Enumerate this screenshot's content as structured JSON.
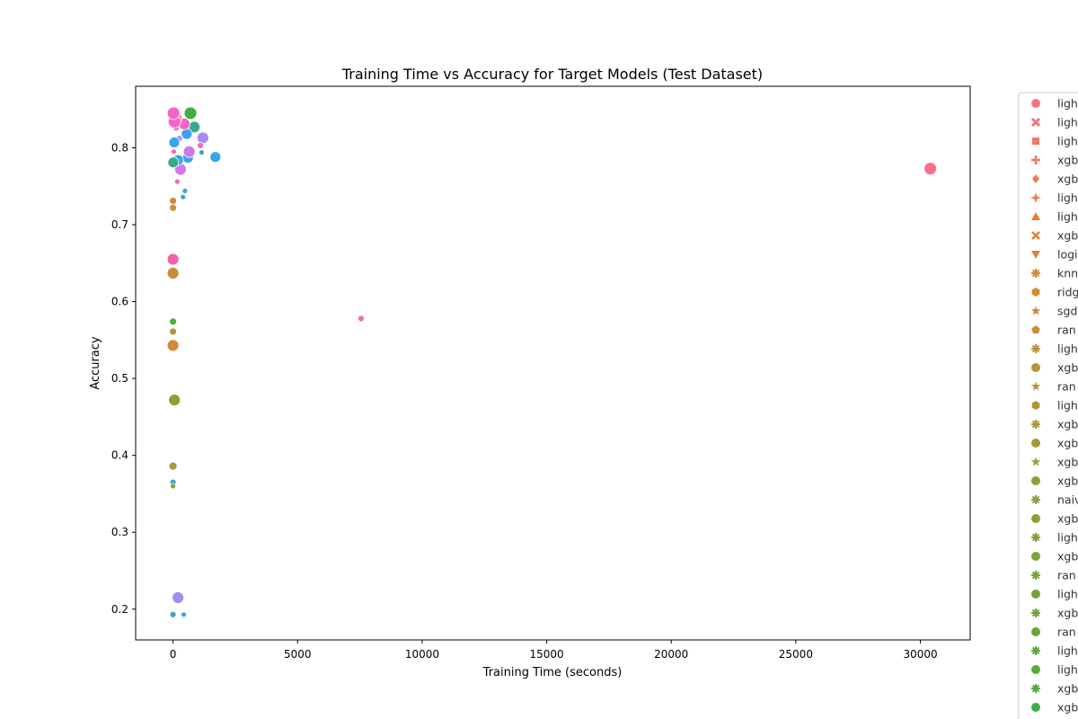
{
  "chart_data": {
    "type": "scatter",
    "title": "Training Time vs Accuracy for Target Models (Test Dataset)",
    "xlabel": "Training Time (seconds)",
    "ylabel": "Accuracy",
    "xlim": [
      -1500,
      32000
    ],
    "ylim": [
      0.16,
      0.88
    ],
    "xticks": [
      0,
      5000,
      10000,
      15000,
      20000,
      25000,
      30000
    ],
    "yticks": [
      0.2,
      0.3,
      0.4,
      0.5,
      0.6,
      0.7,
      0.8
    ],
    "legend_placement": "outside right",
    "legend": [
      {
        "label": "ligh",
        "marker": "circle",
        "color": "#f77189"
      },
      {
        "label": "ligh",
        "marker": "x",
        "color": "#f7717e"
      },
      {
        "label": "ligh",
        "marker": "square",
        "color": "#f7736f"
      },
      {
        "label": "xgb",
        "marker": "plus",
        "color": "#f7755f"
      },
      {
        "label": "xgb",
        "marker": "diamond",
        "color": "#f47850"
      },
      {
        "label": "ligh",
        "marker": "star4",
        "color": "#f17b40"
      },
      {
        "label": "ligh",
        "marker": "triangle-up",
        "color": "#ec7e30"
      },
      {
        "label": "xgb",
        "marker": "x-thick",
        "color": "#e68128"
      },
      {
        "label": "logi",
        "marker": "triangle-down",
        "color": "#e08430"
      },
      {
        "label": "knn",
        "marker": "asterisk",
        "color": "#da8732"
      },
      {
        "label": "ridg",
        "marker": "hexagon",
        "color": "#d48934"
      },
      {
        "label": "sgd",
        "marker": "star",
        "color": "#ce8c36"
      },
      {
        "label": "ran",
        "marker": "pentagon",
        "color": "#c88e36"
      },
      {
        "label": "ligh",
        "marker": "asterisk",
        "color": "#c29036"
      },
      {
        "label": "xgb",
        "marker": "octagon",
        "color": "#bb9237"
      },
      {
        "label": "ran",
        "marker": "star",
        "color": "#b59437"
      },
      {
        "label": "ligh",
        "marker": "hexagon",
        "color": "#ae9637"
      },
      {
        "label": "xgb",
        "marker": "asterisk",
        "color": "#a89837"
      },
      {
        "label": "xgb",
        "marker": "octagon",
        "color": "#a29a37"
      },
      {
        "label": "xgb",
        "marker": "star",
        "color": "#9c9b37"
      },
      {
        "label": "xgb",
        "marker": "octagon",
        "color": "#969c36"
      },
      {
        "label": "naiv",
        "marker": "asterisk",
        "color": "#909e36"
      },
      {
        "label": "xgb",
        "marker": "octagon",
        "color": "#8b9f36"
      },
      {
        "label": "ligh",
        "marker": "asterisk",
        "color": "#85a036"
      },
      {
        "label": "xgb",
        "marker": "octagon",
        "color": "#7fa236"
      },
      {
        "label": "ran",
        "marker": "asterisk",
        "color": "#79a336"
      },
      {
        "label": "ligh",
        "marker": "octagon",
        "color": "#73a436"
      },
      {
        "label": "xgb",
        "marker": "asterisk",
        "color": "#6da636"
      },
      {
        "label": "ran",
        "marker": "octagon",
        "color": "#66a836"
      },
      {
        "label": "ligh",
        "marker": "asterisk",
        "color": "#5ea936"
      },
      {
        "label": "ligh",
        "marker": "octagon",
        "color": "#55ab36"
      },
      {
        "label": "xgb",
        "marker": "asterisk",
        "color": "#4aad3a"
      },
      {
        "label": "xgb",
        "marker": "octagon",
        "color": "#3fae45"
      }
    ],
    "points": [
      {
        "x": 30400,
        "y": 0.773,
        "color": "#f7708a",
        "size": 7
      },
      {
        "x": 7550,
        "y": 0.578,
        "color": "#f16ea0",
        "size": 3.5
      },
      {
        "x": 1700,
        "y": 0.788,
        "color": "#3ba3ec",
        "size": 6
      },
      {
        "x": 1200,
        "y": 0.813,
        "color": "#a48cf4",
        "size": 6.5
      },
      {
        "x": 1100,
        "y": 0.803,
        "color": "#e86bc8",
        "size": 3.5
      },
      {
        "x": 1150,
        "y": 0.794,
        "color": "#35a7c7",
        "size": 3
      },
      {
        "x": 850,
        "y": 0.827,
        "color": "#37ab8c",
        "size": 6.5
      },
      {
        "x": 700,
        "y": 0.845,
        "color": "#42ad45",
        "size": 7
      },
      {
        "x": 600,
        "y": 0.787,
        "color": "#3ba3ec",
        "size": 6
      },
      {
        "x": 650,
        "y": 0.795,
        "color": "#cc79e6",
        "size": 6.5
      },
      {
        "x": 550,
        "y": 0.818,
        "color": "#3ba3ec",
        "size": 6
      },
      {
        "x": 450,
        "y": 0.831,
        "color": "#f564c4",
        "size": 6.5
      },
      {
        "x": 480,
        "y": 0.744,
        "color": "#3ba3d8",
        "size": 3
      },
      {
        "x": 400,
        "y": 0.736,
        "color": "#38a7d0",
        "size": 3
      },
      {
        "x": 430,
        "y": 0.193,
        "color": "#3ba3ec",
        "size": 3
      },
      {
        "x": 300,
        "y": 0.772,
        "color": "#d874e8",
        "size": 6.5
      },
      {
        "x": 250,
        "y": 0.812,
        "color": "#a48cf4",
        "size": 3.5
      },
      {
        "x": 200,
        "y": 0.784,
        "color": "#3ba3ec",
        "size": 6
      },
      {
        "x": 170,
        "y": 0.756,
        "color": "#f564c4",
        "size": 3
      },
      {
        "x": 150,
        "y": 0.838,
        "color": "#f77189",
        "size": 6
      },
      {
        "x": 120,
        "y": 0.826,
        "color": "#f564c4",
        "size": 3.5
      },
      {
        "x": 200,
        "y": 0.215,
        "color": "#a48cf4",
        "size": 6.5
      },
      {
        "x": 60,
        "y": 0.834,
        "color": "#f564c4",
        "size": 7
      },
      {
        "x": 20,
        "y": 0.845,
        "color": "#f564c4",
        "size": 7
      },
      {
        "x": 30,
        "y": 0.795,
        "color": "#f564c4",
        "size": 3
      },
      {
        "x": 50,
        "y": 0.807,
        "color": "#3ba3ec",
        "size": 6
      },
      {
        "x": 10,
        "y": 0.781,
        "color": "#37ab8c",
        "size": 6
      },
      {
        "x": 60,
        "y": 0.472,
        "color": "#969c36",
        "size": 6.5
      },
      {
        "x": 0,
        "y": 0.655,
        "color": "#f564a4",
        "size": 6.5
      },
      {
        "x": 0,
        "y": 0.637,
        "color": "#c88e36",
        "size": 6.5
      },
      {
        "x": 0,
        "y": 0.731,
        "color": "#ce8c36",
        "size": 4
      },
      {
        "x": 0,
        "y": 0.722,
        "color": "#ce8c36",
        "size": 4
      },
      {
        "x": 0,
        "y": 0.574,
        "color": "#4aad3a",
        "size": 4
      },
      {
        "x": 0,
        "y": 0.561,
        "color": "#b59437",
        "size": 4
      },
      {
        "x": 0,
        "y": 0.543,
        "color": "#d48934",
        "size": 6.5
      },
      {
        "x": 0,
        "y": 0.386,
        "color": "#a89837",
        "size": 4.5
      },
      {
        "x": 0,
        "y": 0.365,
        "color": "#3ba3c7",
        "size": 3.5
      },
      {
        "x": 0,
        "y": 0.36,
        "color": "#909e36",
        "size": 3
      },
      {
        "x": 0,
        "y": 0.193,
        "color": "#3ba3c7",
        "size": 3.5
      }
    ]
  }
}
